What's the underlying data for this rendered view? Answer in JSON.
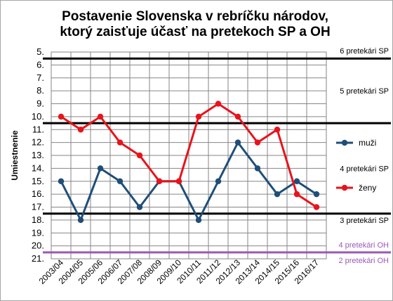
{
  "chart_data": {
    "type": "line",
    "title_lines": [
      "Postavenie Slovenska v rebríčku národov,",
      "ktorý zaisťuje účasť na pretekoch SP a OH"
    ],
    "ylabel": "Umiestnenie",
    "ylim": [
      5,
      21
    ],
    "y_inverted": true,
    "y_ticks": [
      "5.",
      "6.",
      "7.",
      "8.",
      "9.",
      "10.",
      "11.",
      "12.",
      "13.",
      "14.",
      "15.",
      "16.",
      "17.",
      "18.",
      "19.",
      "20.",
      "21."
    ],
    "categories": [
      "2003/04",
      "2004/05",
      "2005/06",
      "2006/07",
      "2007/08",
      "2008/09",
      "2009/10",
      "2010/11",
      "2011/12",
      "2012/13",
      "2013/14",
      "2014/15",
      "2015/16",
      "2016/17"
    ],
    "series": [
      {
        "name": "muži",
        "color": "#1f4e79",
        "values": [
          15,
          18,
          14,
          15,
          17,
          15,
          15,
          18,
          15,
          12,
          14,
          16,
          15,
          16
        ]
      },
      {
        "name": "ženy",
        "color": "#e8131b",
        "values": [
          10,
          11,
          10,
          12,
          13,
          15,
          15,
          10,
          9,
          10,
          12,
          11,
          16,
          17
        ]
      }
    ],
    "thresholds": [
      {
        "y": 5.5,
        "color": "#000000"
      },
      {
        "y": 10.5,
        "color": "#000000"
      },
      {
        "y": 17.5,
        "color": "#000000"
      },
      {
        "y": 20.5,
        "color": "#9b59b6"
      }
    ],
    "annotations": [
      {
        "text": "6 pretekári SP",
        "y": 4.9,
        "color": "#000000"
      },
      {
        "text": "5 pretekári SP",
        "y": 8.0,
        "color": "#000000"
      },
      {
        "text": "4 pretekári SP",
        "y": 14.0,
        "color": "#000000"
      },
      {
        "text": "3 pretekári SP",
        "y": 18.0,
        "color": "#000000"
      },
      {
        "text": "4 pretekári OH",
        "y": 19.9,
        "color": "#9b59b6"
      },
      {
        "text": "2 pretekári OH",
        "y": 21.1,
        "color": "#9b59b6"
      }
    ],
    "grid": true,
    "legend_position": "right"
  }
}
